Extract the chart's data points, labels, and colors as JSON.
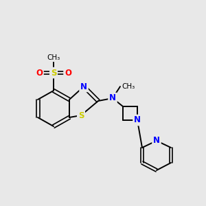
{
  "background_color": "#e8e8e8",
  "bond_color": "#000000",
  "atom_colors": {
    "N": "#0000ff",
    "S": "#cccc00",
    "O": "#ff0000",
    "C": "#000000"
  },
  "figsize": [
    3.0,
    3.0
  ],
  "dpi": 100
}
